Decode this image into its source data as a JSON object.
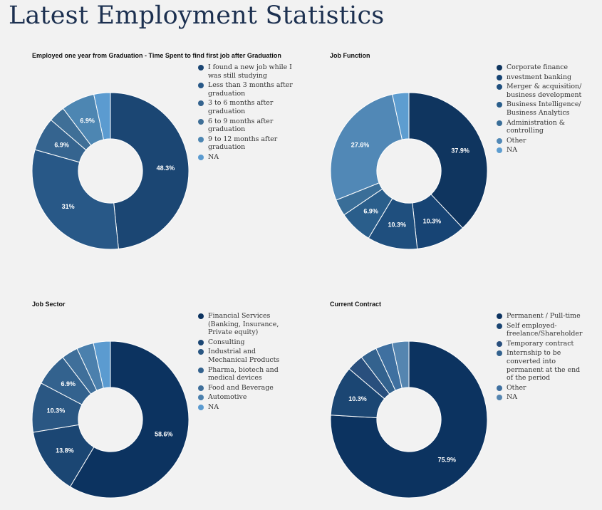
{
  "page": {
    "title": "Latest Employment Statistics"
  },
  "chart_data": [
    {
      "type": "pie",
      "title": "Employed one year from Graduation - Time Spent to find first job after Graduation",
      "categories": [
        "I found a new job while I was still studying",
        "Less than 3 months after graduation",
        "3 to 6 months after graduation",
        "6 to 9 months after graduation",
        "9 to 12 months after graduation",
        "NA"
      ],
      "values": [
        48.3,
        31,
        6.9,
        3.4,
        6.9,
        3.4
      ],
      "labels": [
        "48.3%",
        "31%",
        "6.9%",
        "",
        "6.9%",
        ""
      ],
      "colors": [
        "#1b4673",
        "#285887",
        "#35648f",
        "#3f6f97",
        "#4d86b2",
        "#5b9bd0"
      ],
      "legend_colors": [
        "#1b4673",
        "#285887",
        "#35648f",
        "#3f6f97",
        "#4d86b2",
        "#5b9bd0"
      ],
      "hole": 0.41,
      "legend_position": "right"
    },
    {
      "type": "pie",
      "title": "Job Function",
      "categories": [
        "Corporate finance",
        "nvestment banking",
        "Merger & acquisition/ business development",
        "Business Intelligence/ Business Analytics",
        "Administration & controlling",
        "Other",
        "NA"
      ],
      "values": [
        37.9,
        10.3,
        10.3,
        6.9,
        3.4,
        27.6,
        3.4
      ],
      "labels": [
        "37.9%",
        "10.3%",
        "10.3%",
        "6.9%",
        "",
        "27.6%",
        ""
      ],
      "colors": [
        "#0f355f",
        "#174474",
        "#1f4f7e",
        "#2a5e8b",
        "#3a6e98",
        "#5188b6",
        "#5d9dd0"
      ],
      "legend_colors": [
        "#0f355f",
        "#174474",
        "#1f4f7e",
        "#2a5e8b",
        "#3a6e98",
        "#5188b6",
        "#5d9dd0"
      ],
      "hole": 0.41,
      "legend_position": "right"
    },
    {
      "type": "pie",
      "title": "Job Sector",
      "categories": [
        "Financial Services (Banking, Insurance, Private equity)",
        "Consulting",
        "Industrial and Mechanical Products",
        "Pharma, biotech and medical devices",
        "Food and Beverage",
        "Automotive",
        "NA"
      ],
      "values": [
        58.6,
        13.8,
        10.3,
        6.9,
        3.4,
        3.5,
        3.5
      ],
      "labels": [
        "58.6%",
        "13.8%",
        "10.3%",
        "6.9%",
        "",
        "",
        ""
      ],
      "colors": [
        "#0c3360",
        "#1b4673",
        "#2a5783",
        "#33628e",
        "#3f6f9a",
        "#4b80ad",
        "#5b9bd0"
      ],
      "legend_colors": [
        "#0c3360",
        "#1b4673",
        "#2a5783",
        "#33628e",
        "#3f6f9a",
        "#4b80ad",
        "#5b9bd0"
      ],
      "hole": 0.41,
      "legend_position": "right"
    },
    {
      "type": "pie",
      "title": "Current Contract",
      "categories": [
        "Permanent / Pull-time",
        "Self employed- freelance/Shareholder",
        "Temporary contract",
        "Internship to be converted into permanent at the end of the period",
        "Other",
        "NA"
      ],
      "values": [
        75.9,
        10.3,
        3.45,
        3.45,
        3.45,
        3.45
      ],
      "labels": [
        "75.9%",
        "10.3%",
        "",
        "",
        "",
        ""
      ],
      "colors": [
        "#0c3360",
        "#1b4673",
        "#294f7d",
        "#33628e",
        "#3f70a0",
        "#5585b0"
      ],
      "legend_colors": [
        "#0c3360",
        "#1b4673",
        "#294f7d",
        "#33628e",
        "#3f70a0",
        "#5585b0"
      ],
      "hole": 0.41,
      "legend_position": "right"
    }
  ]
}
